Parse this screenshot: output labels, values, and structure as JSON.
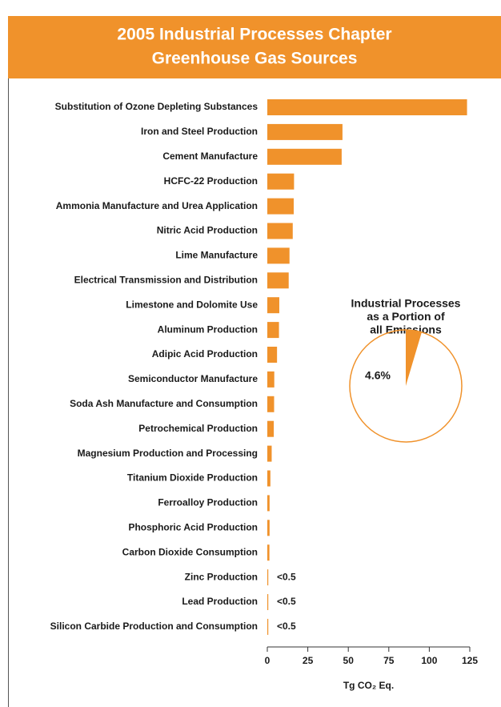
{
  "chart_data": [
    {
      "type": "barh",
      "title": [
        "2005 Industrial Processes Chapter",
        "Greenhouse Gas Sources"
      ],
      "categories": [
        "Substitution of Ozone Depleting Substances",
        "Iron and Steel Production",
        "Cement Manufacture",
        "HCFC-22 Production",
        "Ammonia Manufacture and Urea Application",
        "Nitric Acid Production",
        "Lime Manufacture",
        "Electrical Transmission and Distribution",
        "Limestone and Dolomite Use",
        "Aluminum Production",
        "Adipic Acid Production",
        "Semiconductor Manufacture",
        "Soda Ash Manufacture and Consumption",
        "Petrochemical Production",
        "Magnesium Production and Processing",
        "Titanium Dioxide Production",
        "Ferroalloy Production",
        "Phosphoric Acid Production",
        "Carbon Dioxide Consumption",
        "Zinc Production",
        "Lead Production",
        "Silicon Carbide Production and Consumption"
      ],
      "values": [
        123.3,
        46.4,
        45.9,
        16.5,
        16.3,
        15.7,
        13.7,
        13.2,
        7.4,
        7.2,
        6.0,
        4.3,
        4.2,
        4.0,
        2.7,
        1.9,
        1.4,
        1.4,
        1.3,
        0.4,
        0.3,
        0.4
      ],
      "value_labels": [
        null,
        null,
        null,
        null,
        null,
        null,
        null,
        null,
        null,
        null,
        null,
        null,
        null,
        null,
        null,
        null,
        null,
        null,
        null,
        "<0.5",
        "<0.5",
        "<0.5"
      ],
      "color": "#f0922b",
      "xlim": [
        0,
        125
      ],
      "xticks": [
        0,
        25,
        50,
        75,
        100,
        125
      ],
      "xlabel": "Tg CO₂ Eq."
    },
    {
      "type": "pie",
      "title": [
        "Industrial Processes",
        "as a Portion of",
        "all Emissions"
      ],
      "values": [
        4.6
      ],
      "value_labels": [
        "4.6%"
      ],
      "color": "#f0922b"
    }
  ]
}
